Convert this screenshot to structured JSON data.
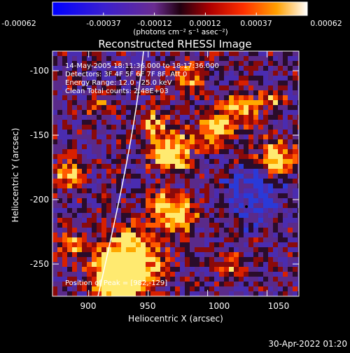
{
  "colorbar": {
    "tick_labels": [
      "-0.00062",
      "-0.00037",
      "-0.00012",
      "0.00012",
      "0.00037",
      "0.00062"
    ],
    "units_label": "(photons cm⁻² s⁻¹ asec⁻²)"
  },
  "plot": {
    "title": "Reconstructed RHESSI Image",
    "xlabel": "Heliocentric X (arcsec)",
    "ylabel": "Heliocentric Y (arcsec)",
    "x_ticks": [
      "900",
      "950",
      "1000",
      "1050"
    ],
    "y_ticks": [
      "-100",
      "-150",
      "-200",
      "-250"
    ],
    "x_range": [
      871,
      1060
    ],
    "y_range": [
      -275,
      -85
    ],
    "annotations": [
      "14-May-2005 18:11:36.000 to 18:17:36.000",
      "Detectors: 3F 4F 5F 6F 7F 8F, Att 0",
      "Energy Range: 12.0 - 25.0 keV",
      "Clean     Total counts: 2.48E+03"
    ],
    "peak_label": "Position of Peak = [982,-129]"
  },
  "timestamp": "30-Apr-2022 01:20"
}
